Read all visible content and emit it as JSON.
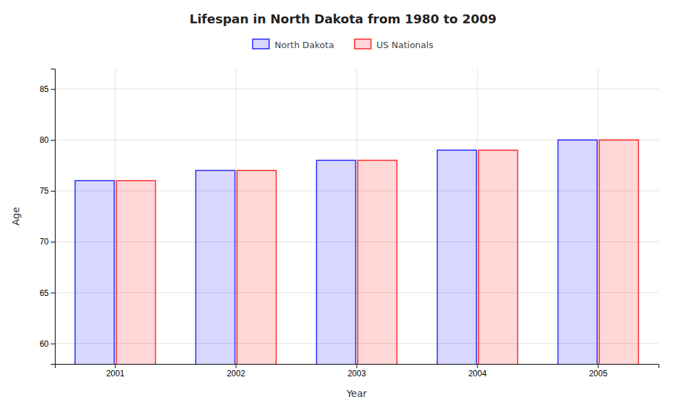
{
  "chart_data": {
    "type": "bar",
    "title": "Lifespan in North Dakota from 1980 to 2009",
    "x_label": "Year",
    "y_label": "Age",
    "categories": [
      "2001",
      "2002",
      "2003",
      "2004",
      "2005"
    ],
    "series": [
      {
        "name": "North Dakota",
        "color": "#2222ff",
        "values": [
          76,
          77,
          78,
          79,
          80
        ]
      },
      {
        "name": "US Nationals",
        "color": "#ff2222",
        "values": [
          76,
          77,
          78,
          79,
          80
        ]
      }
    ],
    "ylim": [
      58,
      87
    ],
    "yticks": [
      60,
      65,
      70,
      75,
      80,
      85
    ],
    "grid": true,
    "legend": "top"
  }
}
